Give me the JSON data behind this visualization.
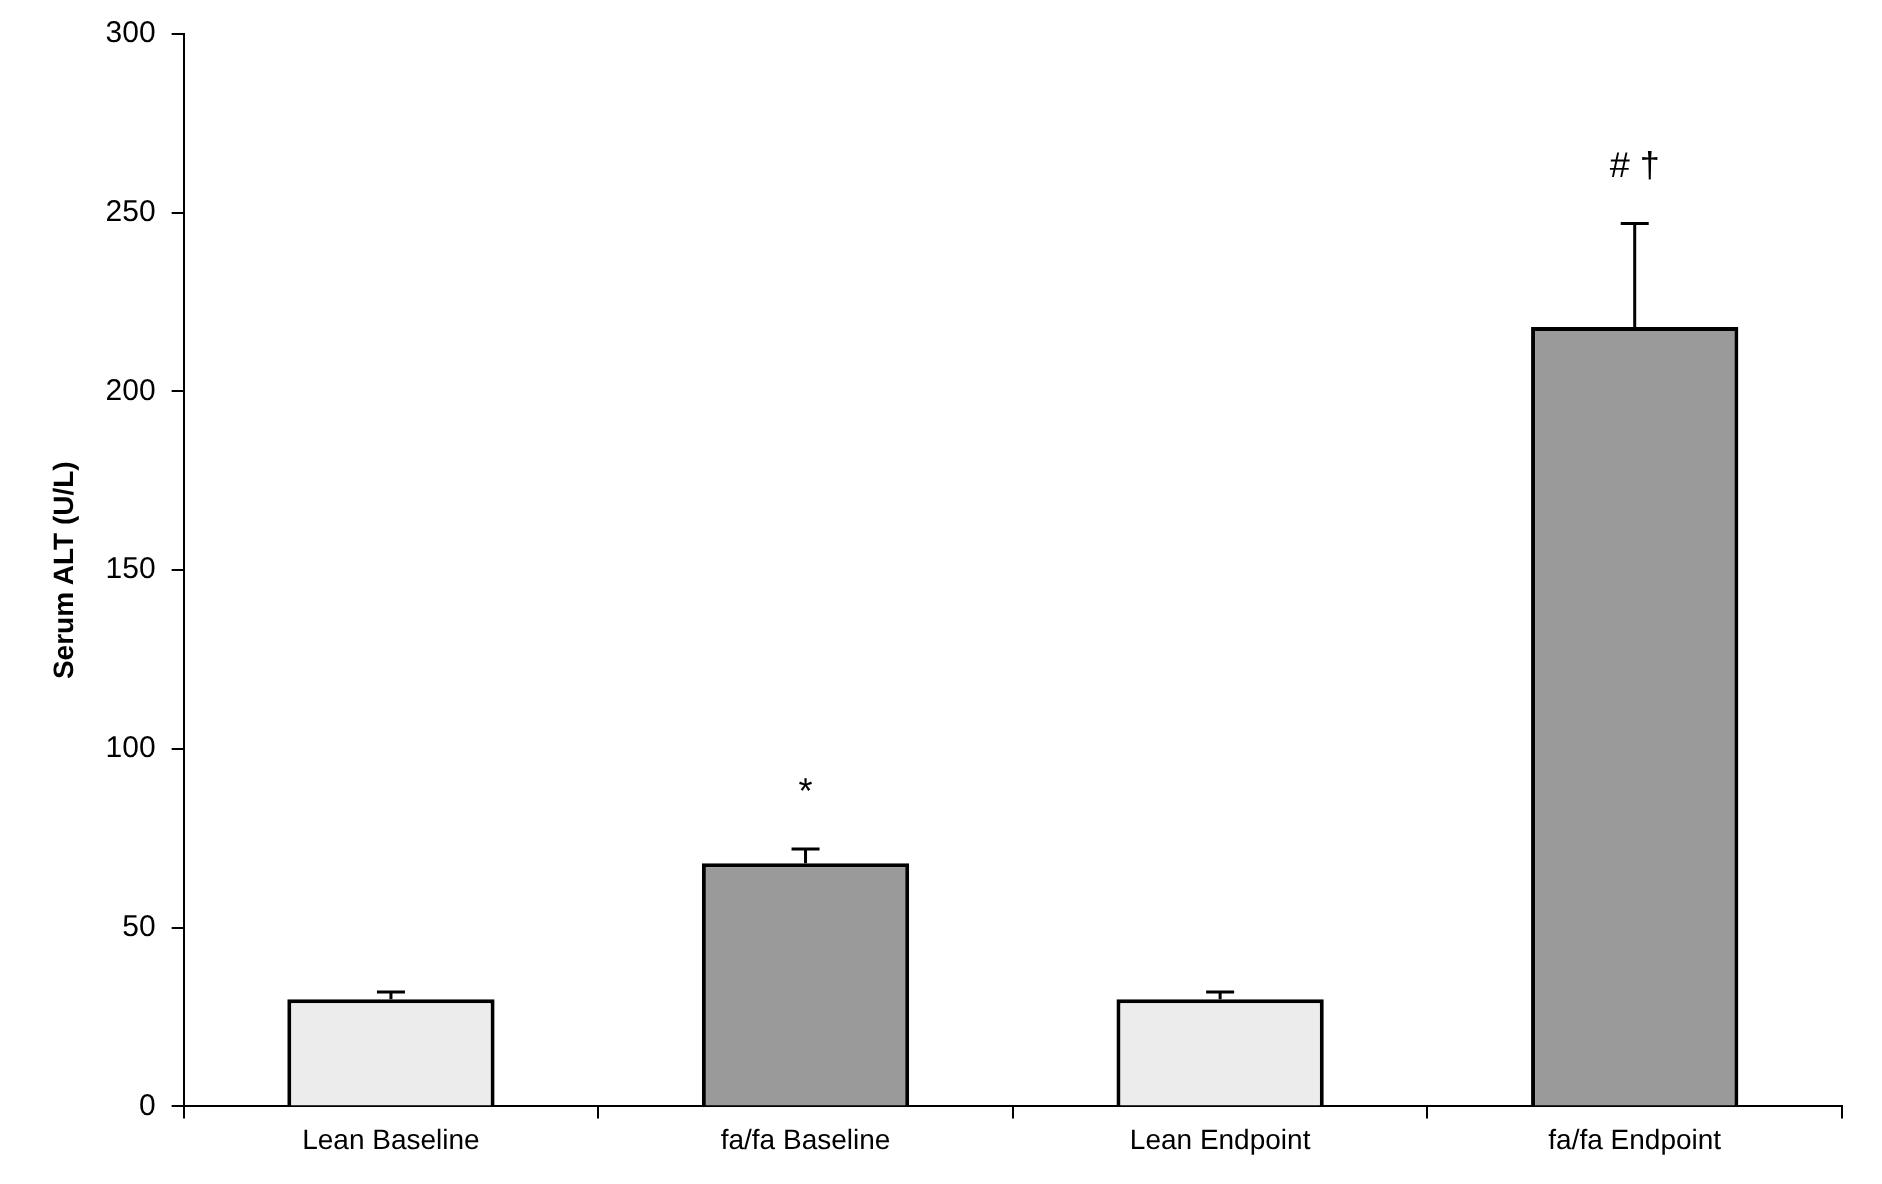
{
  "chart_data": {
    "type": "bar",
    "ylabel": "Serum ALT (U/L)",
    "categories": [
      "Lean Baseline",
      "fa/fa Baseline",
      "Lean Endpoint",
      "fa/fa Endpoint"
    ],
    "values": [
      30,
      68,
      30,
      218
    ],
    "errors": [
      2,
      4,
      2,
      29
    ],
    "colors": [
      "#ececec",
      "#9a9a9a",
      "#ececec",
      "#9a9a9a"
    ],
    "ylim": [
      0,
      300
    ],
    "yticks": [
      0,
      50,
      100,
      150,
      200,
      250,
      300
    ],
    "grid": false,
    "legend": false,
    "annotations": [
      "*",
      "# †"
    ]
  }
}
